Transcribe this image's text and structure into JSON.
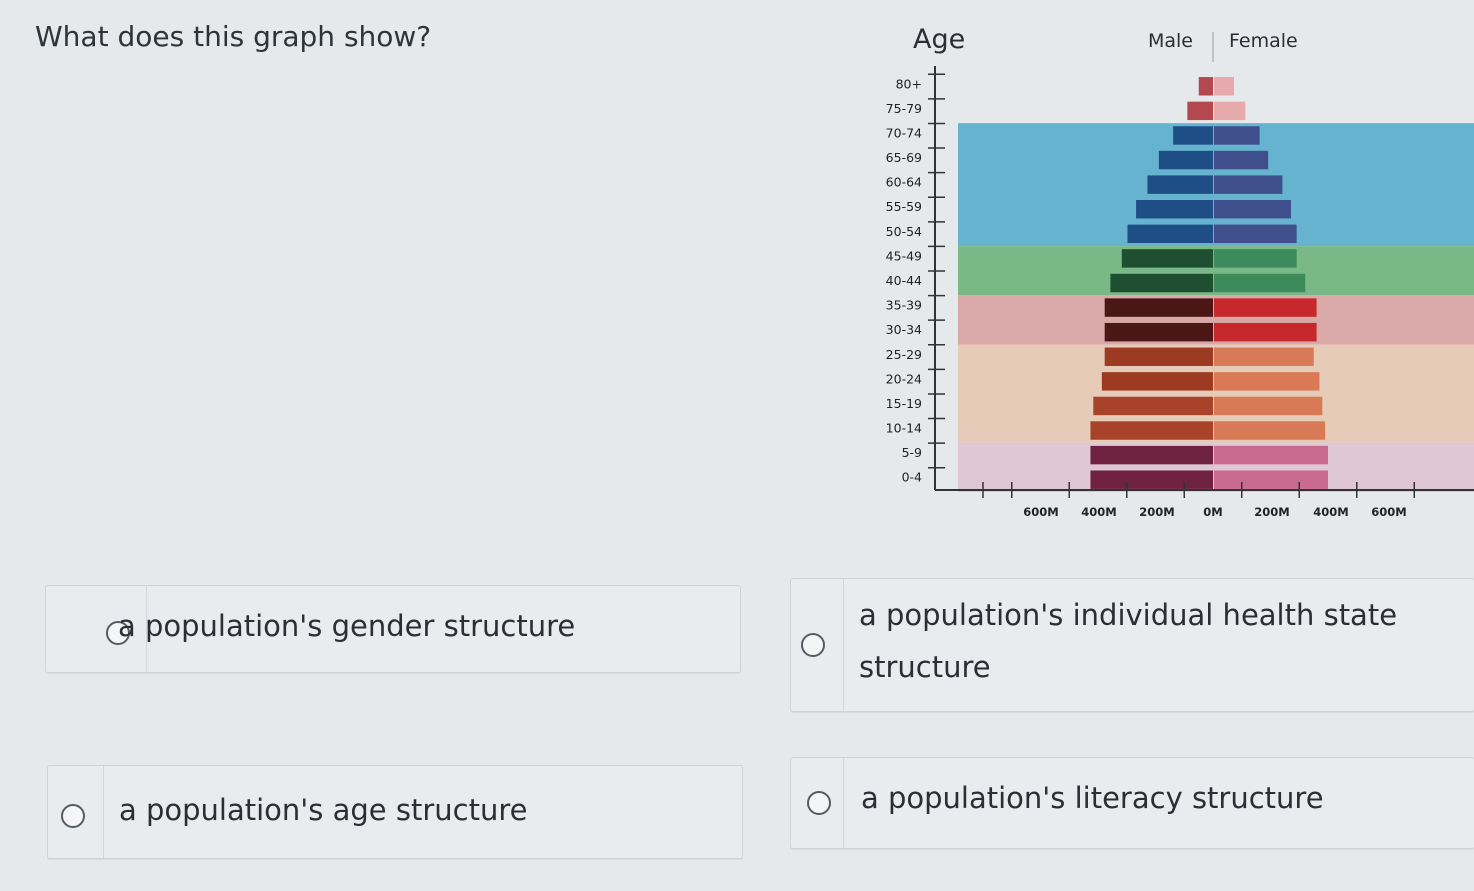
{
  "question": "What does this graph show?",
  "chart_data": {
    "type": "bar",
    "orientation": "horizontal-pyramid",
    "ylabel": "Age",
    "xlabel": "",
    "legend": [
      "Male",
      "Female"
    ],
    "categories": [
      "80+",
      "75-79",
      "70-74",
      "65-69",
      "60-64",
      "55-59",
      "50-54",
      "45-49",
      "40-44",
      "35-39",
      "30-34",
      "25-29",
      "20-24",
      "15-19",
      "10-14",
      "5-9",
      "0-4"
    ],
    "series": [
      {
        "name": "Male",
        "values": [
          25,
          45,
          70,
          95,
          115,
          135,
          150,
          160,
          180,
          190,
          190,
          190,
          195,
          210,
          215,
          215,
          215
        ]
      },
      {
        "name": "Female",
        "values": [
          35,
          55,
          80,
          95,
          120,
          135,
          145,
          145,
          160,
          180,
          180,
          175,
          185,
          190,
          195,
          200,
          200
        ]
      }
    ],
    "x_ticks": [
      "600M",
      "400M",
      "200M",
      "0M",
      "200M",
      "400M",
      "600M"
    ],
    "xlim": [
      -600,
      600
    ],
    "bands": [
      {
        "from": "70-74",
        "to": "50-54",
        "color": "#66b3d0"
      },
      {
        "from": "45-49",
        "to": "40-44",
        "color": "#7bb887"
      },
      {
        "from": "35-39",
        "to": "30-34",
        "color": "#d9a8a8"
      },
      {
        "from": "25-29",
        "to": "10-14",
        "color": "#e6cbb8"
      },
      {
        "from": "5-9",
        "to": "0-4",
        "color": "#dfc7d6"
      }
    ],
    "male_colors": [
      "#b3484f",
      "#b3484f",
      "#1f4e87",
      "#1f4e87",
      "#1f4e87",
      "#1f4e87",
      "#1f4e87",
      "#1d4f30",
      "#1d4f30",
      "#4a1616",
      "#4a1616",
      "#9c3b22",
      "#9c3b22",
      "#a8432a",
      "#a8432a",
      "#6e2240",
      "#6e2240"
    ],
    "female_colors": [
      "#e6a9ac",
      "#e6a9ac",
      "#3e4f8c",
      "#3e4f8c",
      "#3e4f8c",
      "#3e4f8c",
      "#3e4f8c",
      "#3d8b5b",
      "#3d8b5b",
      "#c7282b",
      "#c7282b",
      "#d97a56",
      "#d97a56",
      "#d97a56",
      "#d97a56",
      "#c86a92",
      "#c86a92"
    ]
  },
  "options": [
    {
      "text": "a population's gender structure"
    },
    {
      "text": "a population's individual health state structure"
    },
    {
      "text": "a population's age structure"
    },
    {
      "text": "a population's literacy structure"
    }
  ]
}
